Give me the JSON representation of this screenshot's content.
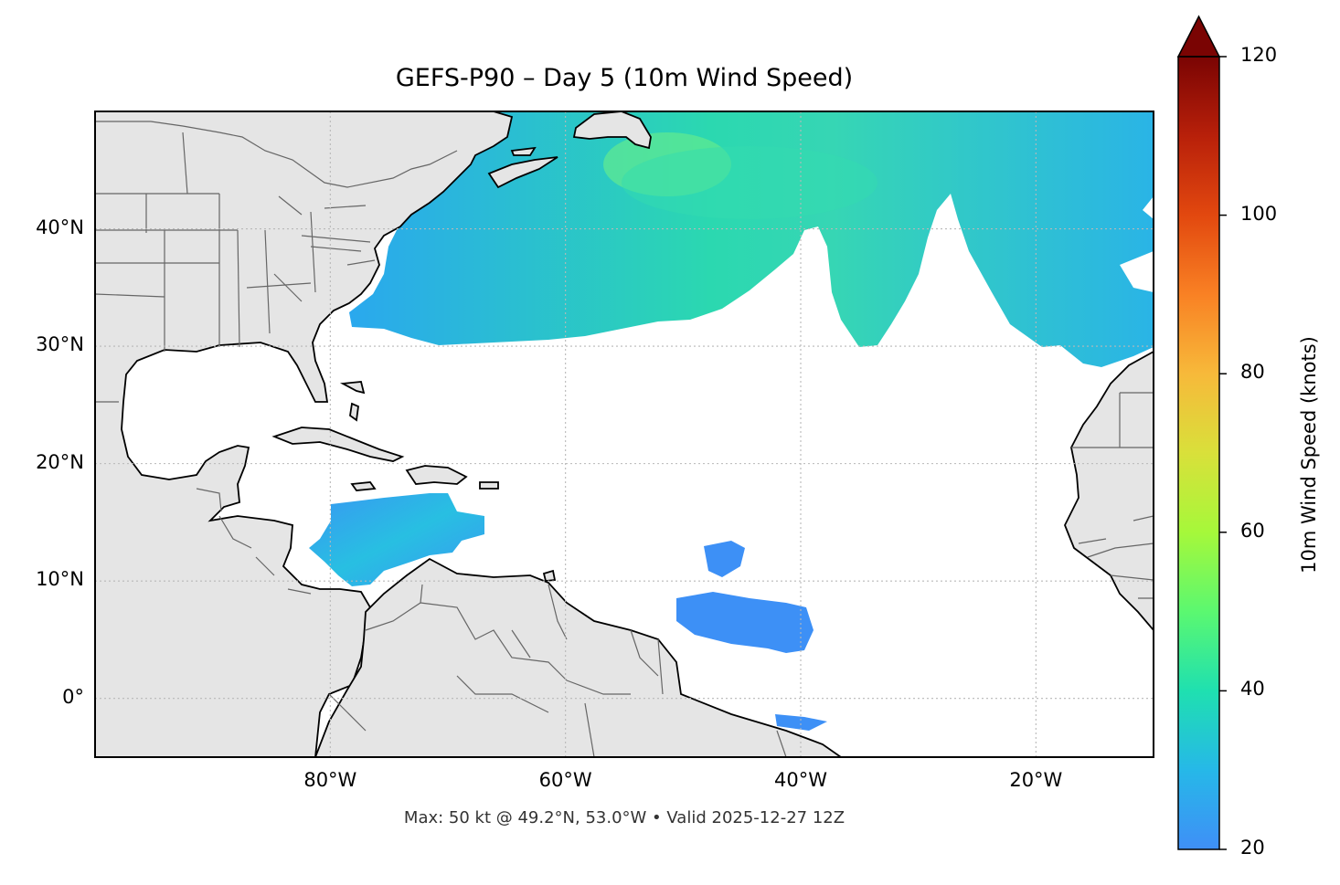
{
  "title": "GEFS-P90 – Day 5 (10m Wind Speed)",
  "caption": "Max: 50 kt @ 49.2°N, 53.0°W • Valid 2025-12-27 12Z",
  "map": {
    "lon_range": [
      -100,
      -10
    ],
    "lat_range": [
      -5,
      50
    ],
    "land_color": "#e5e5e5",
    "ocean_color": "#ffffff",
    "coastline_color": "#000000",
    "border_color": "#666666",
    "gridlines": true
  },
  "axes": {
    "lat_ticks": [
      {
        "value": 40,
        "label": "40°N"
      },
      {
        "value": 30,
        "label": "30°N"
      },
      {
        "value": 20,
        "label": "20°N"
      },
      {
        "value": 10,
        "label": "10°N"
      },
      {
        "value": 0,
        "label": "0°"
      }
    ],
    "lon_ticks": [
      {
        "value": -80,
        "label": "80°W"
      },
      {
        "value": -60,
        "label": "60°W"
      },
      {
        "value": -40,
        "label": "40°W"
      },
      {
        "value": -20,
        "label": "20°W"
      }
    ]
  },
  "colorbar": {
    "label": "10m Wind Speed (knots)",
    "min": 20,
    "max": 120,
    "extend": "max",
    "colormap": "turbo",
    "ticks": [
      {
        "value": 120,
        "label": "120"
      },
      {
        "value": 100,
        "label": "100"
      },
      {
        "value": 80,
        "label": "80"
      },
      {
        "value": 60,
        "label": "60"
      },
      {
        "value": 40,
        "label": "40"
      },
      {
        "value": 20,
        "label": "20"
      }
    ]
  },
  "wind_field": {
    "units": "knots",
    "threshold": 20,
    "max_value": 50,
    "max_location": {
      "lat": 49.2,
      "lon": -53.0
    }
  }
}
